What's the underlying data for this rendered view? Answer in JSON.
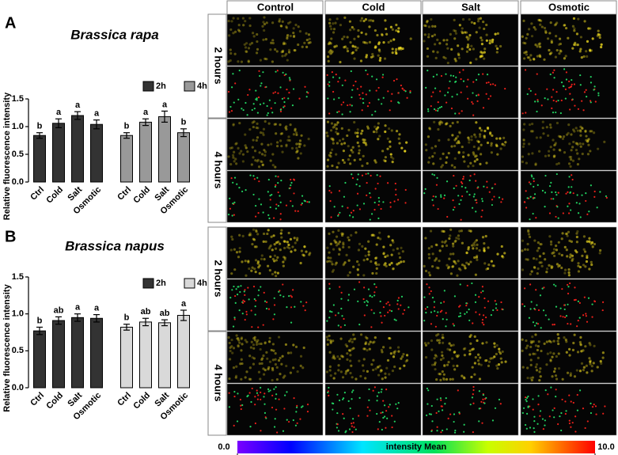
{
  "panels": [
    "A",
    "B"
  ],
  "image_grid": {
    "columns": [
      "Control",
      "Cold",
      "Salt",
      "Osmotic"
    ],
    "rows": [
      "2 hours",
      "4 hours"
    ]
  },
  "colorbar": {
    "label": "intensity Mean",
    "ticks": [
      {
        "value": 0,
        "label": "0.0"
      },
      {
        "value": 10,
        "label": "10.0"
      }
    ]
  },
  "chart_data": [
    {
      "type": "bar",
      "title": "Brassica rapa",
      "y_label": "Relative fluorescence intensity",
      "categories": [
        "Ctrl",
        "Cold",
        "Salt",
        "Osmotic"
      ],
      "series": [
        {
          "name": "2h",
          "color": "#333333",
          "values": [
            0.84,
            1.06,
            1.2,
            1.04
          ],
          "errors": [
            0.05,
            0.08,
            0.07,
            0.08
          ],
          "letters": [
            "b",
            "a",
            "a",
            "a"
          ]
        },
        {
          "name": "4h",
          "color": "#999999",
          "values": [
            0.84,
            1.08,
            1.18,
            0.89
          ],
          "errors": [
            0.05,
            0.06,
            0.1,
            0.07
          ],
          "letters": [
            "b",
            "a",
            "a",
            "b"
          ]
        }
      ],
      "ylim": [
        0,
        1.5
      ],
      "yticks": [
        {
          "value": 0,
          "label": "0.0"
        },
        0.5,
        {
          "value": 1,
          "label": "1.0"
        },
        1.5
      ]
    },
    {
      "type": "bar",
      "title": "Brassica napus",
      "y_label": "Relative fluorescence intensity",
      "categories": [
        "Ctrl",
        "Cold",
        "Salt",
        "Osmotic"
      ],
      "series": [
        {
          "name": "2h",
          "color": "#333333",
          "values": [
            0.77,
            0.91,
            0.95,
            0.94
          ],
          "errors": [
            0.05,
            0.05,
            0.05,
            0.05
          ],
          "letters": [
            "b",
            "ab",
            "a",
            "a"
          ]
        },
        {
          "name": "4h",
          "color": "#d9d9d9",
          "values": [
            0.82,
            0.89,
            0.88,
            0.98
          ],
          "errors": [
            0.04,
            0.05,
            0.04,
            0.07
          ],
          "letters": [
            "b",
            "ab",
            "ab",
            "a"
          ]
        }
      ],
      "ylim": [
        0,
        1.5
      ],
      "yticks": [
        {
          "value": 0,
          "label": "0.0"
        },
        0.5,
        {
          "value": 1,
          "label": "1.0"
        },
        1.5
      ]
    }
  ]
}
